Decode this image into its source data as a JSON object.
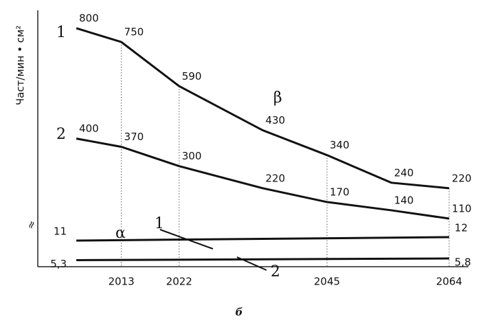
{
  "chart_data": {
    "type": "line",
    "y_label": "Част/мин • см²",
    "caption": "б",
    "annotations": [
      "β",
      "α"
    ],
    "x": [
      2006,
      2013,
      2022,
      2035,
      2045,
      2055,
      2064
    ],
    "xlim": [
      2000,
      2067
    ],
    "xticks": [
      2013,
      2022,
      2045,
      2064
    ],
    "ylim": [
      100,
      840
    ],
    "y2lim": [
      4,
      13
    ],
    "color": "#111111",
    "series": [
      {
        "name": "1",
        "color": "#111111",
        "values": [
          800,
          750,
          590,
          430,
          340,
          240,
          220
        ]
      },
      {
        "name": "2",
        "color": "#111111",
        "values": [
          400,
          370,
          300,
          220,
          170,
          140,
          110
        ]
      },
      {
        "name": "1",
        "color": "#111111",
        "axis": "y2",
        "x": [
          2006,
          2064
        ],
        "values": [
          11,
          12
        ]
      },
      {
        "name": "2",
        "color": "#111111",
        "axis": "y2",
        "x": [
          2006,
          2064
        ],
        "values": [
          5.3,
          5.8
        ],
        "value_labels": [
          "5,3",
          "5,8"
        ]
      }
    ]
  }
}
